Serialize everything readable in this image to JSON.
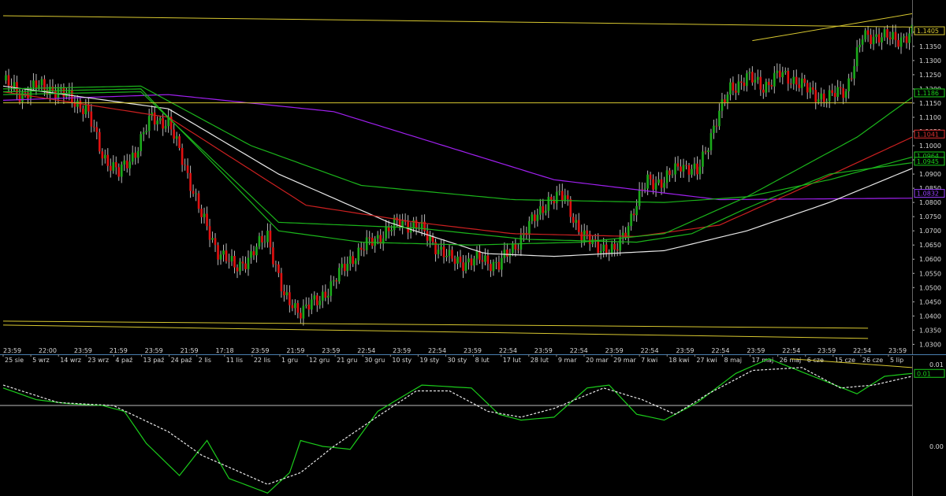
{
  "chart_data": [
    {
      "type": "candlestick",
      "panel": "price",
      "ylim": [
        1.0265,
        1.1505
      ],
      "yticks": [
        "1.1400",
        "1.1350",
        "1.1300",
        "1.1250",
        "1.1200",
        "1.1150",
        "1.1100",
        "1.1050",
        "1.1000",
        "1.0950",
        "1.0900",
        "1.0850",
        "1.0800",
        "1.0750",
        "1.0700",
        "1.0650",
        "1.0600",
        "1.0550",
        "1.0500",
        "1.0450",
        "1.0400",
        "1.0350",
        "1.0300"
      ],
      "ytick_values": [
        1.14,
        1.135,
        1.13,
        1.125,
        1.12,
        1.115,
        1.11,
        1.105,
        1.1,
        1.095,
        1.09,
        1.085,
        1.08,
        1.075,
        1.07,
        1.065,
        1.06,
        1.055,
        1.05,
        1.045,
        1.04,
        1.035,
        1.03
      ],
      "time_labels": [
        "23:59",
        "22:00",
        "23:59",
        "21:59",
        "23:59",
        "21:59",
        "17:18",
        "23:59",
        "21:59",
        "23:59",
        "22:54",
        "23:59",
        "22:54",
        "23:59",
        "22:54",
        "23:59",
        "22:54",
        "23:59",
        "22:54",
        "23:59",
        "22:54",
        "23:59",
        "22:54",
        "23:59",
        "22:54",
        "23:59"
      ],
      "date_labels": [
        "25 sie",
        "5 wrz",
        "14 wrz",
        "23 wrz",
        "4 paź",
        "13 paź",
        "24 paź",
        "2 lis",
        "11 lis",
        "22 lis",
        "1 gru",
        "12 gru",
        "21 gru",
        "30 gru",
        "10 sty",
        "19 sty",
        "30 sty",
        "8 lut",
        "17 lut",
        "28 lut",
        "9 mar",
        "20 mar",
        "29 mar",
        "7 kwi",
        "18 kwi",
        "27 kwi",
        "8 maj",
        "17 maj",
        "26 maj",
        "6 cze",
        "15 cze",
        "26 cze",
        "5 lip"
      ],
      "close_anchors": [
        [
          0,
          1.123
        ],
        [
          6,
          1.118
        ],
        [
          12,
          1.121
        ],
        [
          18,
          1.12
        ],
        [
          24,
          1.117
        ],
        [
          30,
          1.113
        ],
        [
          36,
          1.097
        ],
        [
          42,
          1.09
        ],
        [
          48,
          1.098
        ],
        [
          54,
          1.11
        ],
        [
          60,
          1.108
        ],
        [
          66,
          1.093
        ],
        [
          72,
          1.075
        ],
        [
          78,
          1.063
        ],
        [
          84,
          1.057
        ],
        [
          90,
          1.061
        ],
        [
          96,
          1.069
        ],
        [
          102,
          1.046
        ],
        [
          108,
          1.042
        ],
        [
          114,
          1.045
        ],
        [
          120,
          1.052
        ],
        [
          126,
          1.06
        ],
        [
          132,
          1.065
        ],
        [
          138,
          1.069
        ],
        [
          144,
          1.073
        ],
        [
          150,
          1.072
        ],
        [
          156,
          1.066
        ],
        [
          162,
          1.06
        ],
        [
          168,
          1.059
        ],
        [
          174,
          1.06
        ],
        [
          180,
          1.058
        ],
        [
          186,
          1.065
        ],
        [
          192,
          1.073
        ],
        [
          198,
          1.081
        ],
        [
          204,
          1.082
        ],
        [
          210,
          1.068
        ],
        [
          216,
          1.065
        ],
        [
          222,
          1.062
        ],
        [
          228,
          1.075
        ],
        [
          234,
          1.088
        ],
        [
          240,
          1.087
        ],
        [
          246,
          1.094
        ],
        [
          252,
          1.09
        ],
        [
          258,
          1.107
        ],
        [
          264,
          1.12
        ],
        [
          270,
          1.124
        ],
        [
          276,
          1.121
        ],
        [
          282,
          1.125
        ],
        [
          288,
          1.123
        ],
        [
          294,
          1.118
        ],
        [
          300,
          1.117
        ],
        [
          306,
          1.12
        ],
        [
          312,
          1.138
        ],
        [
          318,
          1.139
        ],
        [
          324,
          1.137
        ],
        [
          330,
          1.14
        ]
      ],
      "series": [
        {
          "name": "",
          "color": "#a020f0",
          "values": [
            [
              0,
              1.116
            ],
            [
              60,
              1.118
            ],
            [
              120,
              1.112
            ],
            [
              200,
              1.088
            ],
            [
              260,
              1.081
            ],
            [
              330,
              1.0815
            ]
          ]
        },
        {
          "name": "",
          "color": "#e8e8e8",
          "values": [
            [
              0,
              1.121
            ],
            [
              60,
              1.113
            ],
            [
              100,
              1.09
            ],
            [
              140,
              1.073
            ],
            [
              175,
              1.062
            ],
            [
              200,
              1.061
            ],
            [
              240,
              1.063
            ],
            [
              270,
              1.07
            ],
            [
              300,
              1.08
            ],
            [
              330,
              1.092
            ]
          ]
        },
        {
          "name": "",
          "color": "#cc2020",
          "values": [
            [
              0,
              1.119
            ],
            [
              60,
              1.11
            ],
            [
              110,
              1.079
            ],
            [
              150,
              1.073
            ],
            [
              185,
              1.069
            ],
            [
              230,
              1.068
            ],
            [
              260,
              1.072
            ],
            [
              290,
              1.085
            ],
            [
              330,
              1.103
            ]
          ]
        },
        {
          "name": "",
          "color": "#1bb51b",
          "values": [
            [
              0,
              1.12
            ],
            [
              50,
              1.121
            ],
            [
              90,
              1.1
            ],
            [
              130,
              1.086
            ],
            [
              185,
              1.081
            ],
            [
              240,
              1.08
            ],
            [
              270,
              1.082
            ],
            [
              300,
              1.088
            ],
            [
              330,
              1.096
            ]
          ]
        },
        {
          "name": "",
          "color": "#1bb51b",
          "values": [
            [
              0,
              1.119
            ],
            [
              50,
              1.12
            ],
            [
              100,
              1.07
            ],
            [
              130,
              1.066
            ],
            [
              170,
              1.065
            ],
            [
              210,
              1.066
            ],
            [
              240,
              1.069
            ],
            [
              270,
              1.082
            ],
            [
              310,
              1.103
            ],
            [
              330,
              1.117
            ]
          ]
        },
        {
          "name": "",
          "color": "#1bb51b",
          "values": [
            [
              0,
              1.118
            ],
            [
              50,
              1.119
            ],
            [
              100,
              1.073
            ],
            [
              150,
              1.071
            ],
            [
              190,
              1.067
            ],
            [
              230,
              1.066
            ],
            [
              250,
              1.069
            ],
            [
              270,
              1.078
            ],
            [
              300,
              1.09
            ],
            [
              330,
              1.094
            ]
          ]
        }
      ],
      "trendlines": [
        {
          "color": "#d8c830",
          "from": [
            0,
            1.1458
          ],
          "to": [
            330,
            1.1418
          ]
        },
        {
          "color": "#d8c830",
          "from": [
            0,
            1.1151
          ],
          "to": [
            330,
            1.1151
          ]
        },
        {
          "color": "#d8c830",
          "from": [
            0,
            1.0382
          ],
          "to": [
            314,
            1.0357
          ]
        },
        {
          "color": "#d8c830",
          "from": [
            0,
            1.0368
          ],
          "to": [
            314,
            1.0321
          ]
        },
        {
          "color": "#d8c830",
          "from": [
            272,
            1.137
          ],
          "to": [
            330,
            1.1465
          ]
        }
      ],
      "price_tags": [
        {
          "text": "1.1405",
          "color": "#d8c830",
          "value": 1.1405
        },
        {
          "text": "1.1186",
          "color": "#1bd01b",
          "value": 1.1186
        },
        {
          "text": "1.1041",
          "color": "#e03030",
          "value": 1.1041
        },
        {
          "text": "1.0964",
          "color": "#1bd01b",
          "value": 1.0964
        },
        {
          "text": "1.0945",
          "color": "#1bd01b",
          "value": 1.0945
        },
        {
          "text": "1.0832",
          "color": "#9a40ff",
          "value": 1.0832
        }
      ]
    },
    {
      "type": "line",
      "panel": "oscillator",
      "ylim": [
        -0.01,
        0.014
      ],
      "yticks": [
        "0.01",
        "0.00"
      ],
      "ytick_values": [
        0.0125,
        -0.0015
      ],
      "zero_line": 0.0055,
      "series": [
        {
          "name": "",
          "color": "#1bcc1b",
          "style": "solid",
          "values": [
            [
              0,
              0.0085
            ],
            [
              12,
              0.0065
            ],
            [
              24,
              0.0058
            ],
            [
              36,
              0.0055
            ],
            [
              44,
              0.0045
            ],
            [
              52,
              -0.001
            ],
            [
              64,
              -0.0065
            ],
            [
              74,
              -0.0005
            ],
            [
              82,
              -0.007
            ],
            [
              96,
              -0.0095
            ],
            [
              104,
              -0.006
            ],
            [
              108,
              -0.0005
            ],
            [
              116,
              -0.0015
            ],
            [
              126,
              -0.002
            ],
            [
              136,
              0.0045
            ],
            [
              152,
              0.009
            ],
            [
              170,
              0.0085
            ],
            [
              180,
              0.004
            ],
            [
              188,
              0.003
            ],
            [
              200,
              0.0035
            ],
            [
              212,
              0.0085
            ],
            [
              220,
              0.009
            ],
            [
              230,
              0.004
            ],
            [
              240,
              0.003
            ],
            [
              252,
              0.006
            ],
            [
              266,
              0.011
            ],
            [
              278,
              0.0135
            ],
            [
              294,
              0.0105
            ],
            [
              310,
              0.0075
            ],
            [
              320,
              0.0105
            ],
            [
              330,
              0.011
            ]
          ]
        },
        {
          "name": "",
          "color": "#e8e8e8",
          "style": "dashed",
          "values": [
            [
              0,
              0.009
            ],
            [
              20,
              0.006
            ],
            [
              40,
              0.0055
            ],
            [
              60,
              0.001
            ],
            [
              72,
              -0.003
            ],
            [
              84,
              -0.0055
            ],
            [
              96,
              -0.008
            ],
            [
              108,
              -0.006
            ],
            [
              120,
              -0.0015
            ],
            [
              134,
              0.003
            ],
            [
              150,
              0.008
            ],
            [
              162,
              0.008
            ],
            [
              176,
              0.0045
            ],
            [
              188,
              0.0035
            ],
            [
              200,
              0.005
            ],
            [
              218,
              0.0085
            ],
            [
              232,
              0.0065
            ],
            [
              244,
              0.004
            ],
            [
              256,
              0.0075
            ],
            [
              272,
              0.0115
            ],
            [
              290,
              0.012
            ],
            [
              304,
              0.0085
            ],
            [
              316,
              0.009
            ],
            [
              330,
              0.0105
            ]
          ]
        }
      ],
      "trendlines": [
        {
          "color": "#d8c830",
          "from": [
            286,
            0.0135
          ],
          "to": [
            330,
            0.012
          ]
        }
      ],
      "tags": [
        {
          "text": "0.01",
          "color": "#1bd01b",
          "value": 0.011
        }
      ]
    }
  ]
}
